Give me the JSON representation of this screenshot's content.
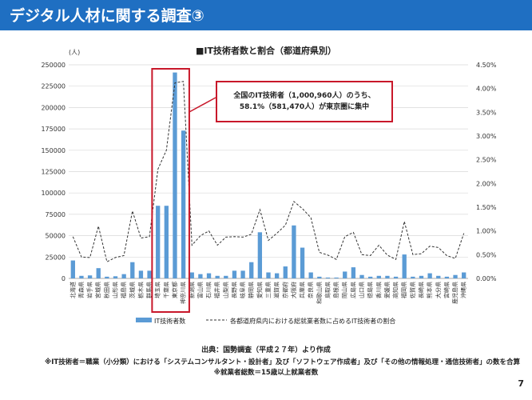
{
  "header": {
    "title": "デジタル人材に関する調査③",
    "color": "#1f6fc2"
  },
  "chart_data": {
    "type": "bar+line",
    "title": "■IT技術者数と割合（都道府県別）",
    "ylabel": "(人)",
    "ylim": [
      0,
      250000
    ],
    "y_ticks": [
      0,
      25000,
      50000,
      75000,
      100000,
      125000,
      150000,
      175000,
      200000,
      225000,
      250000
    ],
    "y2lim": [
      0,
      4.5
    ],
    "y2_ticks": [
      "0.00%",
      "0.50%",
      "1.00%",
      "1.50%",
      "2.00%",
      "2.50%",
      "3.00%",
      "3.50%",
      "4.00%",
      "4.50%"
    ],
    "categories": [
      "北海道",
      "青森県",
      "岩手県",
      "宮城県",
      "秋田県",
      "山形県",
      "福島県",
      "茨城県",
      "栃木県",
      "群馬県",
      "埼玉県",
      "千葉県",
      "東京都",
      "神奈川県",
      "新潟県",
      "富山県",
      "石川県",
      "福井県",
      "山梨県",
      "長野県",
      "岐阜県",
      "静岡県",
      "愛知県",
      "三重県",
      "滋賀県",
      "京都府",
      "大阪府",
      "兵庫県",
      "奈良県",
      "和歌山県",
      "鳥取県",
      "島根県",
      "岡山県",
      "広島県",
      "山口県",
      "徳島県",
      "香川県",
      "愛媛県",
      "高知県",
      "福岡県",
      "佐賀県",
      "長崎県",
      "熊本県",
      "大分県",
      "宮崎県",
      "鹿児島県",
      "沖縄県"
    ],
    "series": [
      {
        "name": "IT技術者数",
        "color": "#5b9bd5",
        "values": [
          21000,
          3000,
          3500,
          12000,
          2000,
          2500,
          5000,
          19000,
          9000,
          9000,
          85000,
          85000,
          241000,
          173000,
          7000,
          5000,
          6000,
          3000,
          3000,
          9000,
          9000,
          19000,
          54000,
          7000,
          6000,
          14000,
          62000,
          36000,
          7000,
          2000,
          1000,
          1000,
          8000,
          13000,
          4000,
          2000,
          3000,
          3000,
          2000,
          28000,
          2000,
          3000,
          6000,
          3000,
          2000,
          4000,
          7000
        ]
      },
      {
        "name": "各都道府県内における総就業者数に占めるIT技術者の割合",
        "color": "#333333",
        "style": "dashed",
        "values": [
          0.88,
          0.45,
          0.44,
          1.1,
          0.35,
          0.44,
          0.48,
          1.42,
          0.85,
          0.88,
          2.3,
          2.7,
          4.12,
          4.15,
          0.7,
          0.9,
          1.0,
          0.7,
          0.87,
          0.88,
          0.87,
          0.93,
          1.45,
          0.8,
          0.95,
          1.12,
          1.62,
          1.47,
          1.28,
          0.55,
          0.49,
          0.4,
          0.88,
          0.97,
          0.5,
          0.48,
          0.7,
          0.49,
          0.4,
          1.2,
          0.5,
          0.52,
          0.68,
          0.65,
          0.48,
          0.42,
          0.95
        ]
      }
    ],
    "highlight": [
      "埼玉県",
      "千葉県",
      "東京都",
      "神奈川県"
    ],
    "highlight_color": "#c8182a"
  },
  "callout": {
    "line1": "全国のIT技術者（1,000,960人）のうち、",
    "line2": "58.1%（581,470人）が東京圏に集中"
  },
  "legend": {
    "bar_label": "IT技術者数",
    "line_label": "各都道府県内における総就業者数に占めるIT技術者の割合"
  },
  "source": "出典：国勢調査（平成２７年）より作成",
  "note1": "※IT技術者＝職業（小分類）における「システムコンサルタント・設計者」及び「ソフトウェア作成者」及び「その他の情報処理・通信技術者」の数を合算",
  "note2": "※就業者総数＝15歳以上就業者数",
  "page_number": "7"
}
